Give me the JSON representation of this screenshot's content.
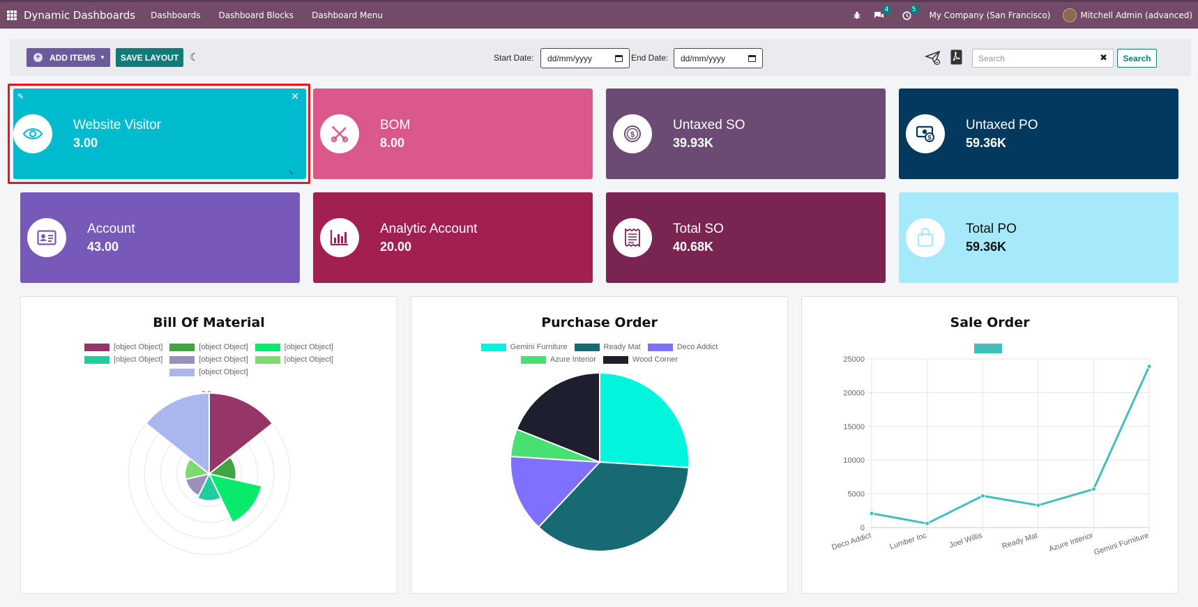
{
  "navbar": {
    "brand": "Dynamic Dashboards",
    "menu": [
      "Dashboards",
      "Dashboard Blocks",
      "Dashboard Menu"
    ],
    "messages_badge": "4",
    "activities_badge": "5",
    "company": "My Company (San Francisco)",
    "user": "Mitchell Admin (advanced)"
  },
  "toolbar": {
    "add_items_label": "ADD ITEMS",
    "save_layout_label": "SAVE LAYOUT",
    "start_date_label": "Start Date:",
    "start_date_value": "dd/mm/yyyy",
    "end_date_label": "End Date:",
    "end_date_value": "dd/mm/yyyy",
    "search_placeholder": "Search",
    "search_button_label": "Search"
  },
  "tiles": [
    {
      "name": "Website Visitor",
      "value": "3.00",
      "color": "#00bacd",
      "icon": "eye-icon"
    },
    {
      "name": "BOM",
      "value": "8.00",
      "color": "#d9578a",
      "icon": "tools-icon"
    },
    {
      "name": "Untaxed SO",
      "value": "39.93K",
      "color": "#6b4b73",
      "icon": "dollar-coin-icon"
    },
    {
      "name": "Untaxed PO",
      "value": "59.36K",
      "color": "#04395e",
      "icon": "money-bill-icon"
    },
    {
      "name": "Account",
      "value": "43.00",
      "color": "#7759b8",
      "icon": "id-card-icon"
    },
    {
      "name": "Analytic Account",
      "value": "20.00",
      "color": "#a21f52",
      "icon": "bar-chart-icon"
    },
    {
      "name": "Total SO",
      "value": "40.68K",
      "color": "#7a2452",
      "icon": "receipt-icon"
    },
    {
      "name": "Total PO",
      "value": "59.36K",
      "color": "#a6e9fb",
      "icon": "shopping-bag-icon"
    }
  ],
  "chart_data": [
    {
      "type": "polarArea",
      "title": "Bill Of Material",
      "legend_position": "top",
      "series_labels": [
        "[object Object]",
        "[object Object]",
        "[object Object]",
        "[object Object]",
        "[object Object]",
        "[object Object]",
        "[object Object]"
      ],
      "colors": [
        "#953568",
        "#40a540",
        "#08ea6c",
        "#21cc9d",
        "#9a91bb",
        "#80d873",
        "#abb5ee"
      ],
      "values": [
        3.0,
        1.0,
        2.0,
        1.0,
        0.9,
        0.9,
        3.0
      ],
      "rmax": 3.0,
      "top_tick": "3.0"
    },
    {
      "type": "pie",
      "title": "Purchase Order",
      "legend_position": "top",
      "categories": [
        "Gemini Furniture",
        "Ready Mat",
        "Deco Addict",
        "Azure Interior",
        "Wood Corner"
      ],
      "colors": [
        "#00f6dc",
        "#176a74",
        "#7f71fe",
        "#48df73",
        "#1e1f2c"
      ],
      "values": [
        26,
        36,
        14,
        5,
        19
      ]
    },
    {
      "type": "line",
      "title": "Sale Order",
      "legend_position": "top",
      "series_color": "#41bfbb",
      "categories": [
        "Deco Addict",
        "Lumber Inc",
        "Joel Willis",
        "Ready Mat",
        "Azure Interior",
        "Gemini Furniture"
      ],
      "values": [
        2100,
        600,
        4700,
        3300,
        5700,
        23900
      ],
      "ylim": [
        0,
        25000
      ],
      "yticks": [
        "0",
        "5000",
        "10000",
        "15000",
        "20000",
        "25000"
      ]
    }
  ]
}
